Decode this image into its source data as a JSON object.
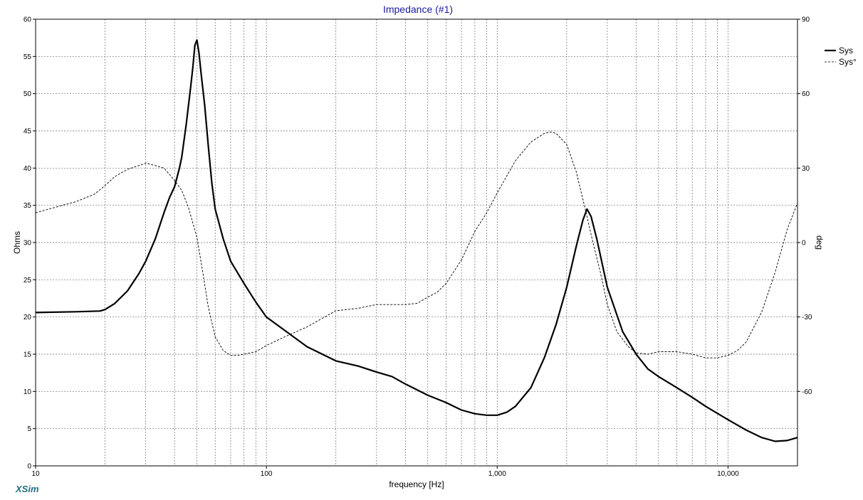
{
  "chart_data": {
    "type": "line",
    "title": "Impedance (#1)",
    "xlabel": "frequency [Hz]",
    "ylabel": "Ohms",
    "y2label": "deg",
    "xscale": "log",
    "xlim": [
      10,
      20000
    ],
    "ylim": [
      0,
      60
    ],
    "y2lim": [
      -90,
      90
    ],
    "x_ticks": [
      {
        "value": 10,
        "label": "10"
      },
      {
        "value": 100,
        "label": "100"
      },
      {
        "value": 1000,
        "label": "1,000"
      },
      {
        "value": 10000,
        "label": "10,000"
      }
    ],
    "y_ticks": [
      "0",
      "5",
      "10",
      "15",
      "20",
      "25",
      "30",
      "35",
      "40",
      "45",
      "50",
      "55",
      "60"
    ],
    "y2_ticks": [
      "-60",
      "-30",
      "0",
      "30",
      "60",
      "90"
    ],
    "grid": true,
    "legend_position": "right",
    "series": [
      {
        "name": "Sys",
        "style": "solid",
        "axis": "left",
        "points": [
          [
            10,
            20.6
          ],
          [
            15,
            20.7
          ],
          [
            19,
            20.8
          ],
          [
            20,
            21.0
          ],
          [
            22,
            21.8
          ],
          [
            25,
            23.5
          ],
          [
            28,
            25.8
          ],
          [
            30,
            27.5
          ],
          [
            33,
            30.5
          ],
          [
            36,
            34.0
          ],
          [
            38,
            36.0
          ],
          [
            40,
            37.5
          ],
          [
            42,
            40.0
          ],
          [
            43,
            41.5
          ],
          [
            45,
            46.0
          ],
          [
            47,
            51.0
          ],
          [
            48,
            53.5
          ],
          [
            49,
            56.5
          ],
          [
            50,
            57.2
          ],
          [
            51,
            55.5
          ],
          [
            52,
            53.0
          ],
          [
            54,
            48.5
          ],
          [
            56,
            43.0
          ],
          [
            58,
            38.0
          ],
          [
            60,
            34.5
          ],
          [
            65,
            30.5
          ],
          [
            70,
            27.5
          ],
          [
            80,
            24.5
          ],
          [
            90,
            22.0
          ],
          [
            100,
            20.0
          ],
          [
            120,
            18.2
          ],
          [
            150,
            16.0
          ],
          [
            200,
            14.1
          ],
          [
            250,
            13.4
          ],
          [
            300,
            12.6
          ],
          [
            350,
            12.0
          ],
          [
            400,
            11.0
          ],
          [
            500,
            9.5
          ],
          [
            600,
            8.5
          ],
          [
            700,
            7.5
          ],
          [
            800,
            7.0
          ],
          [
            900,
            6.8
          ],
          [
            1000,
            6.8
          ],
          [
            1100,
            7.2
          ],
          [
            1200,
            8.0
          ],
          [
            1400,
            10.5
          ],
          [
            1600,
            14.5
          ],
          [
            1800,
            19.0
          ],
          [
            2000,
            24.0
          ],
          [
            2200,
            29.5
          ],
          [
            2350,
            33.0
          ],
          [
            2450,
            34.5
          ],
          [
            2550,
            33.5
          ],
          [
            2700,
            30.5
          ],
          [
            3000,
            24.0
          ],
          [
            3500,
            18.0
          ],
          [
            4000,
            15.0
          ],
          [
            4500,
            13.0
          ],
          [
            5000,
            12.0
          ],
          [
            6000,
            10.5
          ],
          [
            7000,
            9.2
          ],
          [
            8000,
            8.0
          ],
          [
            10000,
            6.2
          ],
          [
            12000,
            4.8
          ],
          [
            14000,
            3.8
          ],
          [
            16000,
            3.3
          ],
          [
            18000,
            3.4
          ],
          [
            20000,
            3.8
          ]
        ]
      },
      {
        "name": "Sys°",
        "style": "dashed",
        "axis": "right",
        "points": [
          [
            10,
            12.0
          ],
          [
            15,
            16.5
          ],
          [
            18,
            19.5
          ],
          [
            20,
            23.0
          ],
          [
            22,
            26.5
          ],
          [
            25,
            29.5
          ],
          [
            28,
            31.0
          ],
          [
            30,
            32.0
          ],
          [
            33,
            31.0
          ],
          [
            36,
            30.0
          ],
          [
            38,
            27.5
          ],
          [
            40,
            25.0
          ],
          [
            43,
            21.0
          ],
          [
            46,
            14.0
          ],
          [
            50,
            2.0
          ],
          [
            53,
            -12.0
          ],
          [
            56,
            -26.0
          ],
          [
            60,
            -38.0
          ],
          [
            65,
            -43.5
          ],
          [
            70,
            -45.5
          ],
          [
            75,
            -45.5
          ],
          [
            80,
            -45.0
          ],
          [
            90,
            -44.0
          ],
          [
            100,
            -41.5
          ],
          [
            120,
            -38.0
          ],
          [
            150,
            -34.0
          ],
          [
            200,
            -27.5
          ],
          [
            250,
            -26.5
          ],
          [
            300,
            -25.0
          ],
          [
            400,
            -25.0
          ],
          [
            450,
            -24.5
          ],
          [
            500,
            -22.0
          ],
          [
            550,
            -20.0
          ],
          [
            600,
            -16.5
          ],
          [
            700,
            -7.0
          ],
          [
            800,
            4.5
          ],
          [
            900,
            12.0
          ],
          [
            1000,
            20.0
          ],
          [
            1200,
            33.0
          ],
          [
            1400,
            40.5
          ],
          [
            1600,
            44.0
          ],
          [
            1700,
            44.5
          ],
          [
            1800,
            44.0
          ],
          [
            2000,
            39.5
          ],
          [
            2200,
            28.5
          ],
          [
            2400,
            14.0
          ],
          [
            2600,
            0.0
          ],
          [
            2800,
            -12.0
          ],
          [
            3000,
            -25.0
          ],
          [
            3300,
            -36.0
          ],
          [
            3700,
            -42.0
          ],
          [
            4000,
            -44.5
          ],
          [
            4500,
            -45.0
          ],
          [
            5000,
            -44.0
          ],
          [
            6000,
            -44.0
          ],
          [
            7000,
            -45.0
          ],
          [
            8000,
            -46.5
          ],
          [
            9000,
            -46.5
          ],
          [
            10000,
            -45.5
          ],
          [
            11000,
            -43.5
          ],
          [
            12000,
            -40.0
          ],
          [
            14000,
            -28.0
          ],
          [
            16000,
            -12.0
          ],
          [
            18000,
            5.0
          ],
          [
            20000,
            16.0
          ]
        ]
      }
    ]
  },
  "brand": "XSim",
  "colors": {
    "title": "#1a1a9e",
    "brand": "#1f6f80",
    "grid": "#6a6a6a",
    "line": "#000000"
  }
}
